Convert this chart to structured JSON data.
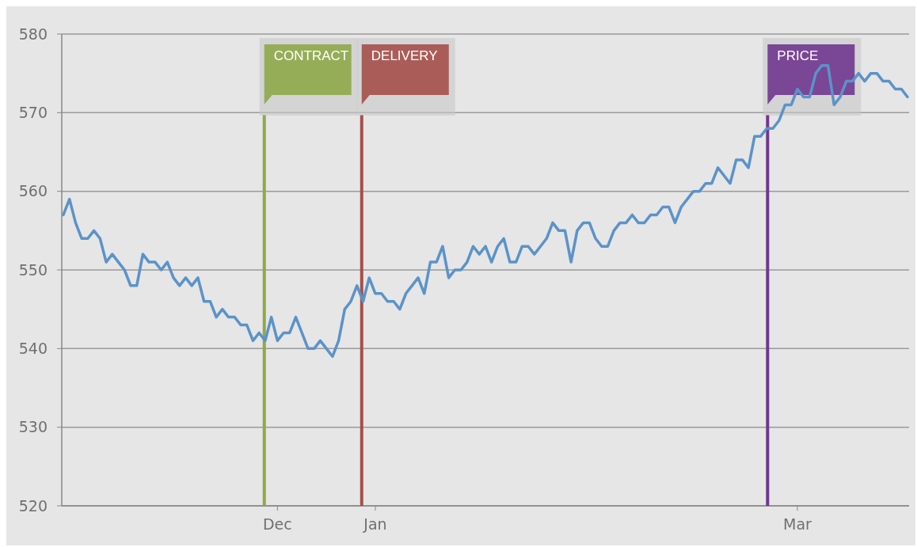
{
  "chart_data": {
    "type": "line",
    "categories": [
      null,
      null,
      null,
      null,
      null,
      null,
      null,
      null,
      null,
      null,
      null,
      null,
      null,
      null,
      null,
      null,
      null,
      null,
      null,
      null,
      null,
      null,
      null,
      null,
      null,
      null,
      null,
      null,
      null,
      null,
      null,
      null,
      null,
      null,
      null,
      "Dec",
      null,
      null,
      null,
      null,
      null,
      null,
      null,
      null,
      null,
      null,
      null,
      null,
      null,
      null,
      null,
      "Jan",
      null,
      null,
      null,
      null,
      null,
      null,
      null,
      null,
      null,
      null,
      null,
      null,
      null,
      null,
      null,
      null,
      null,
      null,
      null,
      null,
      null,
      null,
      null,
      null,
      null,
      null,
      null,
      null,
      null,
      null,
      null,
      null,
      null,
      null,
      null,
      null,
      null,
      null,
      null,
      null,
      null,
      null,
      null,
      null,
      null,
      null,
      null,
      null,
      null,
      null,
      null,
      null,
      null,
      null,
      null,
      null,
      null,
      null,
      null,
      null,
      null,
      null,
      null,
      null,
      null,
      null,
      null,
      null,
      "Mar",
      null,
      null,
      null,
      null,
      null,
      null,
      null,
      null,
      null,
      null,
      null,
      null,
      null,
      null,
      null,
      null,
      null,
      null
    ],
    "series": [
      {
        "color": "#5b93c9",
        "values": [
          557,
          559,
          556,
          554,
          554,
          555,
          554,
          551,
          552,
          551,
          550,
          548,
          548,
          552,
          551,
          551,
          550,
          551,
          549,
          548,
          549,
          548,
          549,
          546,
          546,
          544,
          545,
          544,
          544,
          543,
          543,
          541,
          542,
          541,
          544,
          541,
          542,
          542,
          544,
          542,
          540,
          540,
          541,
          540,
          539,
          541,
          545,
          546,
          548,
          546,
          549,
          547,
          547,
          546,
          546,
          545,
          547,
          548,
          549,
          547,
          551,
          551,
          553,
          549,
          550,
          550,
          551,
          553,
          552,
          553,
          551,
          553,
          554,
          551,
          551,
          553,
          553,
          552,
          553,
          554,
          556,
          555,
          555,
          551,
          555,
          556,
          556,
          554,
          553,
          553,
          555,
          556,
          556,
          557,
          556,
          556,
          557,
          557,
          558,
          558,
          556,
          558,
          559,
          560,
          560,
          561,
          561,
          563,
          562,
          561,
          564,
          564,
          563,
          567,
          567,
          568,
          568,
          569,
          571,
          571,
          573,
          572,
          572,
          575,
          576,
          576,
          571,
          572,
          574,
          574,
          575,
          574,
          575,
          575,
          574,
          574,
          573,
          573,
          572
        ]
      }
    ],
    "ylim": [
      520,
      580
    ],
    "yticks": [
      520,
      530,
      540,
      550,
      560,
      570,
      580
    ],
    "grid": "y",
    "marker": "none",
    "line_style": "solid",
    "annotations": [
      "CONTRACT",
      "DELIVERY",
      "PRICE"
    ]
  }
}
